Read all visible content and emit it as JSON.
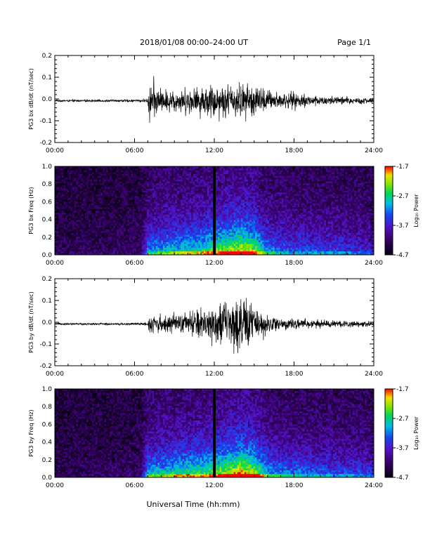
{
  "header": {
    "title": "2018/01/08  00:00–24:00 UT",
    "page": "Page 1/1"
  },
  "footer": {
    "xlabel": "Universal Time (hh:mm)"
  },
  "colorbar": {
    "label": "Log₁₀ Power",
    "ticks": [
      "-1.7",
      "-2.7",
      "-3.7",
      "-4.7"
    ]
  },
  "chart_data": [
    {
      "type": "line",
      "ylabel": "PG3 bx dB/dt (nT/sec)",
      "xlim": [
        0,
        24
      ],
      "ylim": [
        -0.2,
        0.2
      ],
      "xticks": [
        "00:00",
        "06:00",
        "12:00",
        "18:00",
        "24:00"
      ],
      "yticks": [
        "-0.2",
        "-0.1",
        "0.0",
        "0.1",
        "0.2"
      ],
      "envelope": {
        "x": [
          0,
          6,
          7,
          7.1,
          8,
          9,
          10,
          11,
          12,
          13,
          14,
          15,
          16,
          17,
          18,
          20,
          22,
          24
        ],
        "amplitude": [
          0.006,
          0.008,
          0.012,
          0.15,
          0.07,
          0.07,
          0.08,
          0.09,
          0.11,
          0.1,
          0.11,
          0.1,
          0.07,
          0.05,
          0.05,
          0.03,
          0.025,
          0.015
        ]
      }
    },
    {
      "type": "heatmap",
      "ylabel": "PG3 bx Freq (Hz)",
      "xlim": [
        0,
        24
      ],
      "ylim": [
        0,
        1.0
      ],
      "xticks": [
        "00:00",
        "06:00",
        "12:00",
        "18:00",
        "24:00"
      ],
      "yticks": [
        "0.0",
        "0.2",
        "0.4",
        "0.6",
        "0.8",
        "1.0"
      ],
      "zlim": [
        -4.7,
        -1.7
      ],
      "activity": {
        "x": [
          0,
          6.5,
          7,
          9,
          11,
          12,
          13,
          14,
          15,
          16,
          17,
          19,
          21,
          23,
          24
        ],
        "level": [
          0.05,
          0.08,
          0.45,
          0.55,
          0.6,
          0.7,
          0.75,
          0.85,
          0.75,
          0.45,
          0.4,
          0.35,
          0.35,
          0.3,
          0.25
        ]
      }
    },
    {
      "type": "line",
      "ylabel": "PG3 by dB/dt (nT/sec)",
      "xlim": [
        0,
        24
      ],
      "ylim": [
        -0.2,
        0.2
      ],
      "xticks": [
        "00:00",
        "06:00",
        "12:00",
        "18:00",
        "24:00"
      ],
      "yticks": [
        "-0.2",
        "-0.1",
        "0.0",
        "0.1",
        "0.2"
      ],
      "envelope": {
        "x": [
          0,
          6,
          7,
          7.1,
          8,
          9,
          10,
          11,
          12,
          13,
          14,
          15,
          16,
          17,
          18,
          20,
          22,
          24
        ],
        "amplitude": [
          0.006,
          0.007,
          0.01,
          0.07,
          0.05,
          0.06,
          0.07,
          0.1,
          0.12,
          0.14,
          0.18,
          0.11,
          0.06,
          0.04,
          0.03,
          0.025,
          0.02,
          0.015
        ]
      }
    },
    {
      "type": "heatmap",
      "ylabel": "PG3 by Freq (Hz)",
      "xlim": [
        0,
        24
      ],
      "ylim": [
        0,
        1.0
      ],
      "xticks": [
        "00:00",
        "06:00",
        "12:00",
        "18:00",
        "24:00"
      ],
      "yticks": [
        "0.0",
        "0.2",
        "0.4",
        "0.6",
        "0.8",
        "1.0"
      ],
      "zlim": [
        -4.7,
        -1.7
      ],
      "activity": {
        "x": [
          0,
          6.5,
          7,
          9,
          11,
          12,
          13,
          14,
          15,
          16,
          17,
          19,
          21,
          23,
          24
        ],
        "level": [
          0.05,
          0.08,
          0.5,
          0.6,
          0.65,
          0.7,
          0.8,
          0.9,
          0.8,
          0.5,
          0.45,
          0.4,
          0.35,
          0.35,
          0.3
        ]
      }
    }
  ]
}
